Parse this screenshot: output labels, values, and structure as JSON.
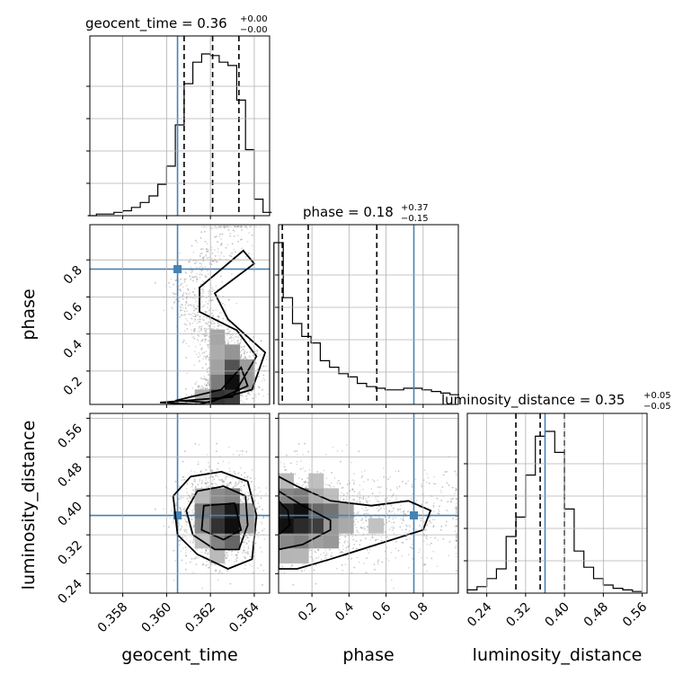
{
  "chart_data": {
    "type": "corner",
    "parameters": [
      "geocent_time",
      "phase",
      "luminosity_distance"
    ],
    "titles": {
      "geocent_time": {
        "name": "geocent_time",
        "median": "0.36",
        "plus": "+0.00",
        "minus": "−0.00"
      },
      "phase": {
        "name": "phase",
        "median": "0.18",
        "plus": "+0.37",
        "minus": "−0.15"
      },
      "luminosity_distance": {
        "name": "luminosity_distance",
        "median": "0.35",
        "plus": "+0.05",
        "minus": "−0.05"
      }
    },
    "axis_labels": {
      "x": [
        "geocent_time",
        "phase",
        "luminosity_distance"
      ],
      "y": [
        "phase",
        "luminosity_distance"
      ]
    },
    "ranges": {
      "geocent_time": [
        0.3565,
        0.3647
      ],
      "phase": [
        0.02,
        0.99
      ],
      "luminosity_distance": [
        0.2,
        0.57
      ]
    },
    "ticks": {
      "geocent_time": [
        "0.358",
        "0.360",
        "0.362",
        "0.364"
      ],
      "phase_x": [
        "0.2",
        "0.4",
        "0.6",
        "0.8"
      ],
      "phase_y": [
        "0.2",
        "0.4",
        "0.6",
        "0.8"
      ],
      "luminosity_distance_x": [
        "0.24",
        "0.32",
        "0.40",
        "0.48",
        "0.56"
      ],
      "luminosity_distance_y": [
        "0.24",
        "0.32",
        "0.40",
        "0.48",
        "0.56"
      ]
    },
    "truths": {
      "geocent_time": 0.3605,
      "phase": 0.75,
      "luminosity_distance": 0.36
    },
    "quantiles": {
      "geocent_time": [
        0.3608,
        0.3621,
        0.3633
      ],
      "phase": [
        0.04,
        0.18,
        0.55
      ],
      "luminosity_distance": [
        0.3,
        0.35,
        0.4
      ]
    },
    "histograms": {
      "geocent_time": {
        "x": [
          0.3566,
          0.357,
          0.3574,
          0.3578,
          0.3582,
          0.3586,
          0.359,
          0.3594,
          0.3598,
          0.3602,
          0.3606,
          0.361,
          0.3614,
          0.3618,
          0.3622,
          0.3626,
          0.363,
          0.3634,
          0.3638,
          0.3642,
          0.3646
        ],
        "counts": [
          0,
          1,
          1,
          2,
          3,
          5,
          8,
          12,
          19,
          30,
          55,
          80,
          93,
          98,
          97,
          93,
          91,
          70,
          40,
          10,
          2
        ]
      },
      "phase": {
        "x": [
          0.02,
          0.07,
          0.12,
          0.17,
          0.22,
          0.27,
          0.32,
          0.37,
          0.42,
          0.47,
          0.52,
          0.57,
          0.62,
          0.67,
          0.72,
          0.77,
          0.82,
          0.87,
          0.92,
          0.97
        ],
        "counts": [
          100,
          66,
          50,
          42,
          38,
          27,
          23,
          19,
          17,
          13,
          11,
          10,
          9,
          9,
          10,
          10,
          9,
          8,
          7,
          6
        ]
      },
      "luminosity_distance": {
        "x": [
          0.21,
          0.23,
          0.25,
          0.27,
          0.29,
          0.31,
          0.33,
          0.35,
          0.37,
          0.39,
          0.41,
          0.43,
          0.45,
          0.47,
          0.49,
          0.51,
          0.53,
          0.55
        ],
        "counts": [
          2,
          4,
          9,
          15,
          35,
          47,
          73,
          97,
          100,
          87,
          52,
          26,
          16,
          9,
          5,
          3,
          2,
          1
        ]
      }
    }
  },
  "colors": {
    "truth": "#4682b4",
    "line": "#000000",
    "grid": "#b0b0b0"
  }
}
